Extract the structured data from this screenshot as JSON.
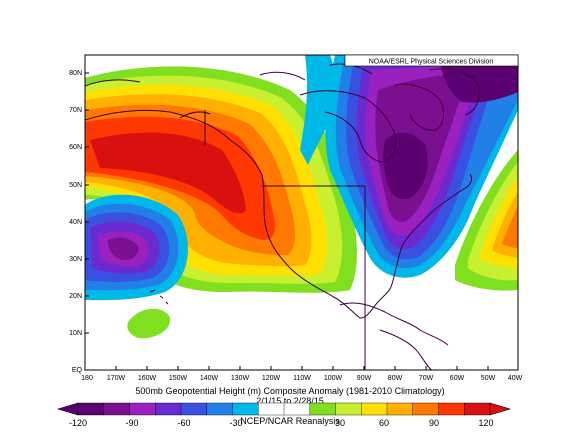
{
  "map": {
    "credit": "NOAA/ESRL Physical Sciences Division",
    "lat_labels": [
      "80N",
      "70N",
      "60N",
      "50N",
      "40N",
      "30N",
      "20N",
      "10N",
      "EQ"
    ],
    "lon_labels": [
      "180",
      "170W",
      "160W",
      "150W",
      "140W",
      "130W",
      "120W",
      "110W",
      "100W",
      "90W",
      "80W",
      "70W",
      "60W",
      "50W",
      "40W"
    ],
    "caption_line1": "500mb Geopotential Height (m) Composite Anomaly (1981-2010 Climatology)",
    "caption_line2": "2/1/15 to 2/28/15",
    "caption_line3": "NCEP/NCAR Reanalysis"
  },
  "colorbar": {
    "labels": [
      "-120",
      "-90",
      "-60",
      "-30",
      "30",
      "60",
      "90",
      "120"
    ],
    "colors": [
      "#5a0070",
      "#7a1090",
      "#9a20c0",
      "#6a2ad0",
      "#3a50e0",
      "#2080e8",
      "#00b8e8",
      "#ffffff",
      "#ffffff",
      "#80e020",
      "#c8f030",
      "#ffe000",
      "#ffb000",
      "#ff7800",
      "#ff3800",
      "#d81010"
    ]
  }
}
